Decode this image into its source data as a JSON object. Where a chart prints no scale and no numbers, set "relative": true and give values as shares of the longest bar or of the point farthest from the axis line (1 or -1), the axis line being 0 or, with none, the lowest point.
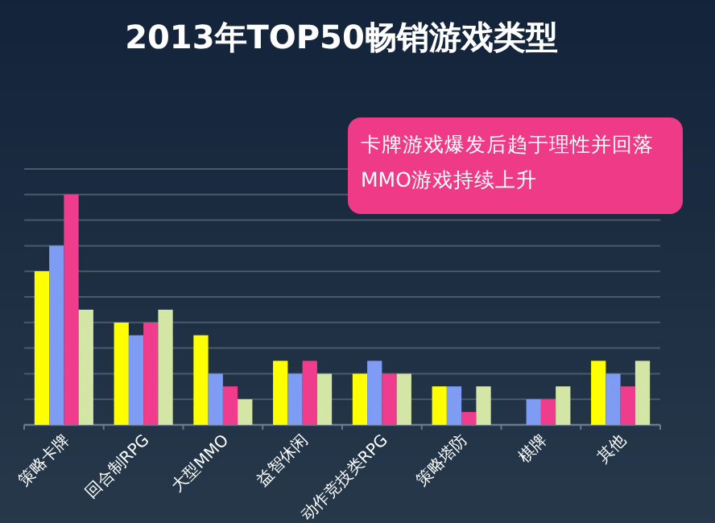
{
  "chart_data": {
    "type": "bar",
    "title": "2013年TOP50畅销游戏类型",
    "annotations": [
      "卡牌游戏爆发后趋于理性并回落\nMMO游戏持续上升"
    ],
    "relative": true,
    "grid": "y",
    "categories": [
      "策略卡牌",
      "回合制RPG",
      "大型MMO",
      "益智休闲",
      "动作竞技类RPG",
      "策略塔防",
      "棋牌",
      "其他"
    ],
    "series": [
      {
        "color": "#ffff00",
        "values": [
          0.667,
          0.444,
          0.389,
          0.278,
          0.222,
          0.167,
          0,
          0.278
        ]
      },
      {
        "color": "#7f9cf5",
        "values": [
          0.778,
          0.389,
          0.222,
          0.222,
          0.278,
          0.167,
          0.111,
          0.222
        ]
      },
      {
        "color": "#f03c8c",
        "values": [
          1,
          0.444,
          0.167,
          0.278,
          0.222,
          0.056,
          0.111,
          0.167
        ]
      },
      {
        "color": "#d4e6a5",
        "values": [
          0.5,
          0.5,
          0.111,
          0.222,
          0.222,
          0.167,
          0.167,
          0.278
        ]
      }
    ]
  }
}
